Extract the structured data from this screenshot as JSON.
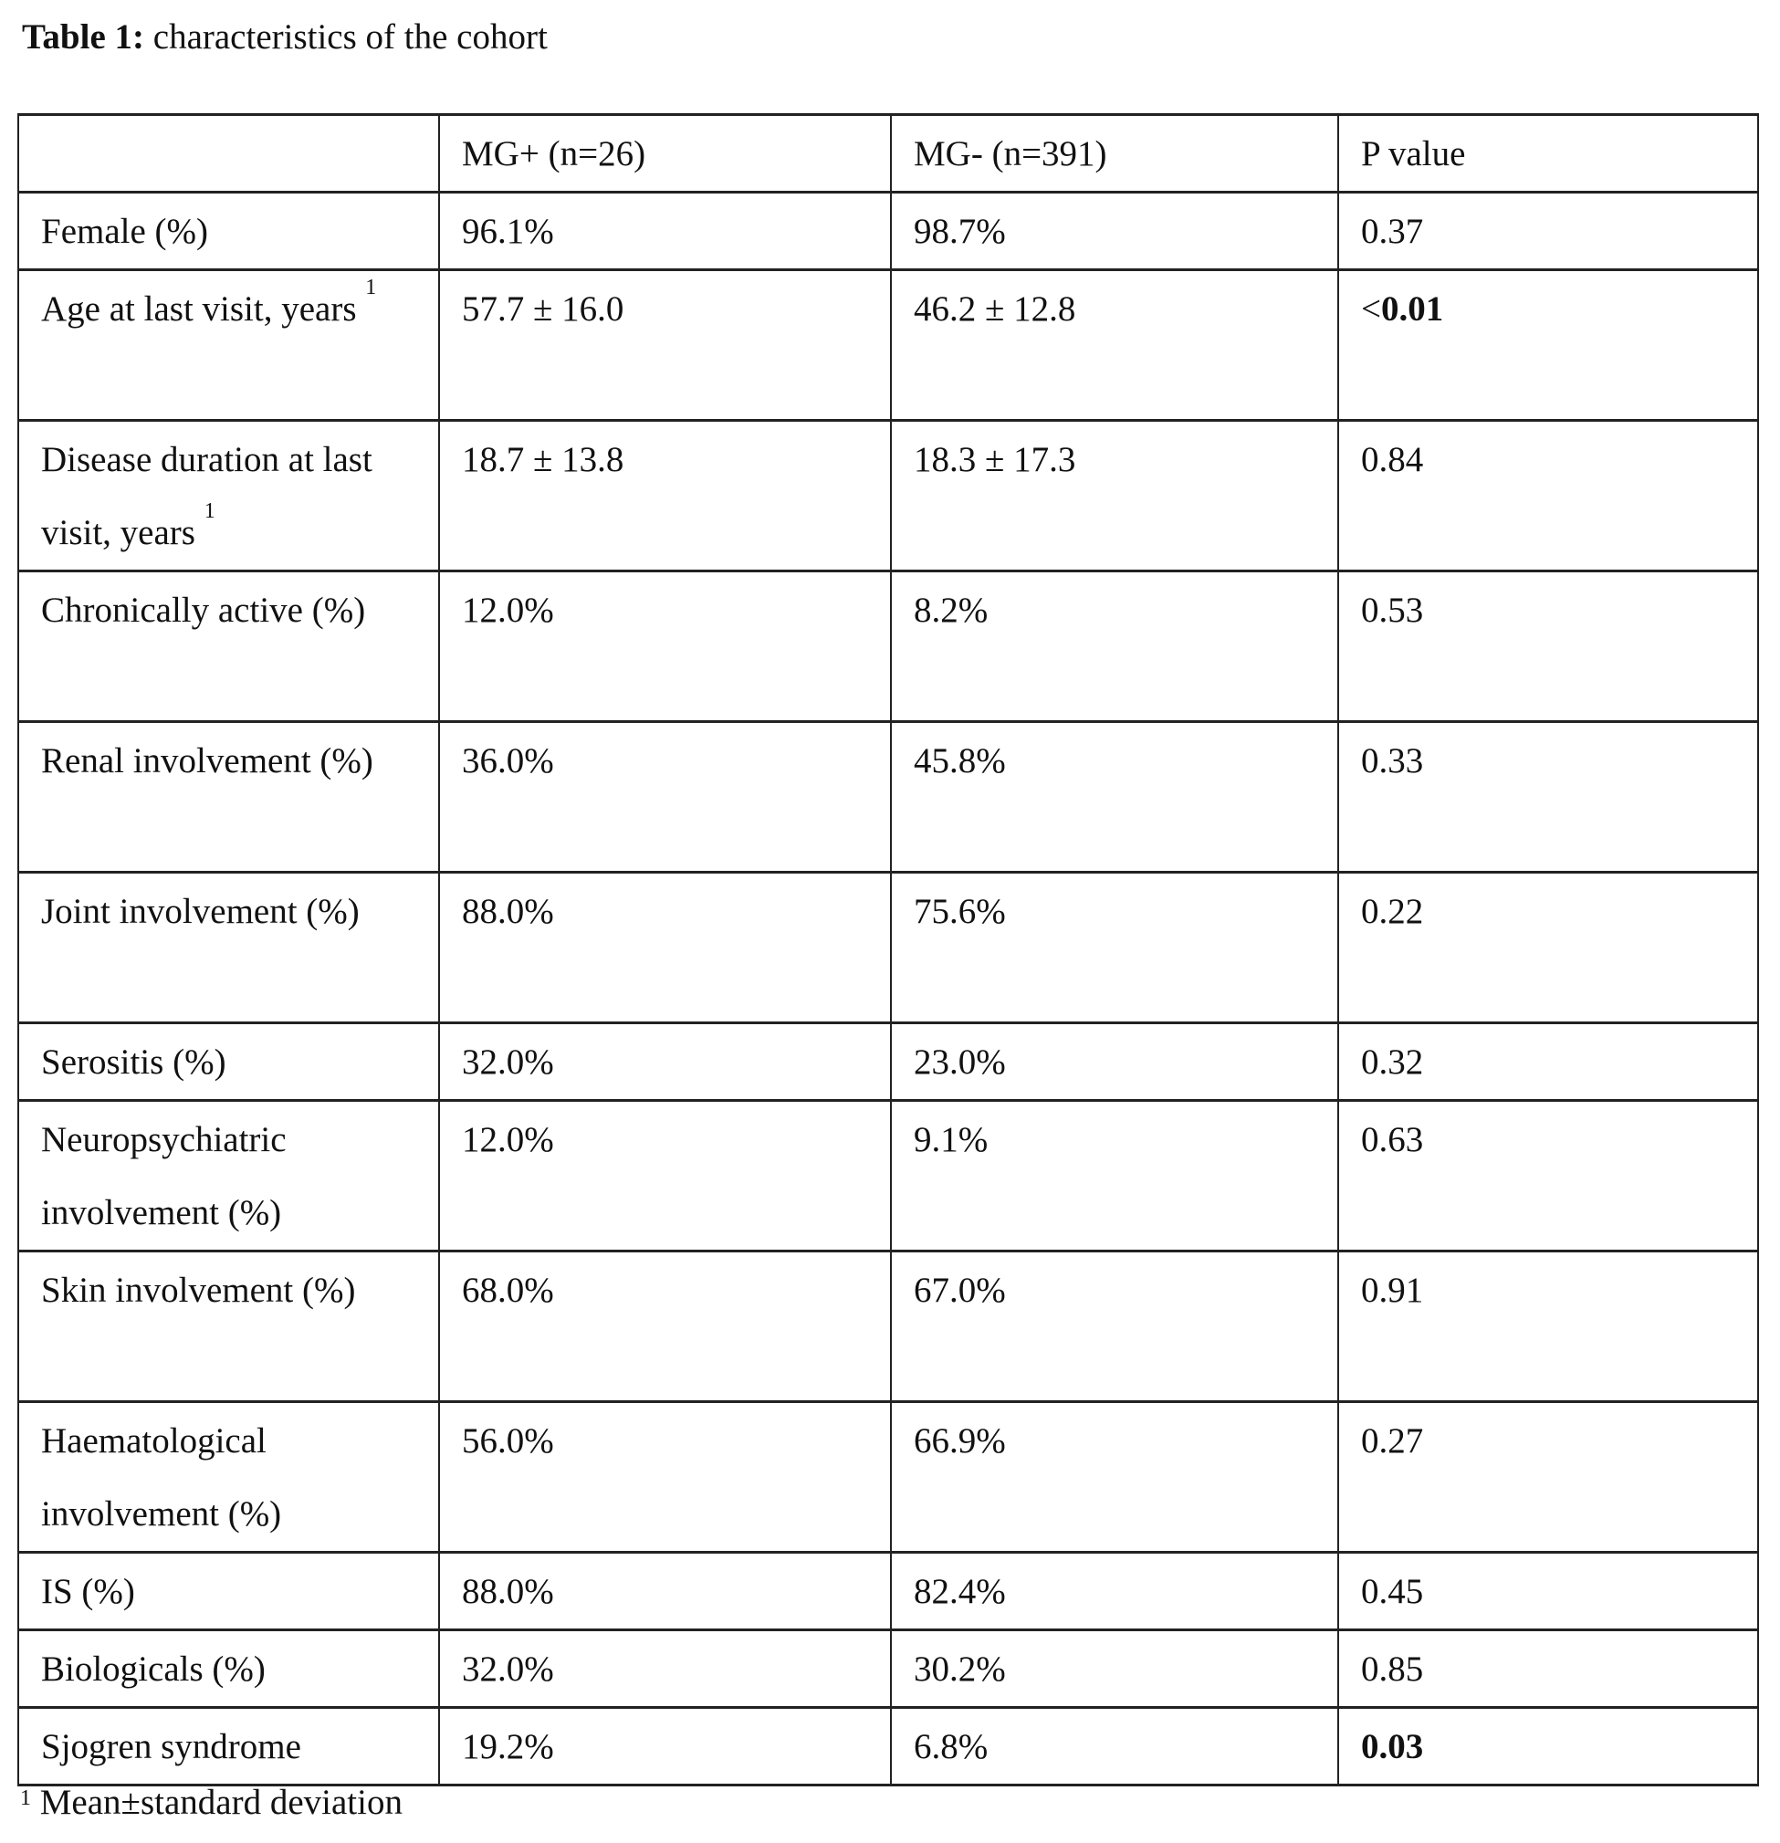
{
  "title": {
    "label": "Table 1:",
    "text": " characteristics of the cohort"
  },
  "table": {
    "headers": [
      "",
      "MG+ (n=26)",
      "MG- (n=391)",
      "P value"
    ],
    "rows": [
      {
        "label": "Female (%)",
        "sup": "",
        "mg_pos": "96.1%",
        "mg_neg": "98.7%",
        "p_prefix": "",
        "p": "0.37",
        "p_bold": false,
        "lines": 1
      },
      {
        "label": "Age at last visit, years",
        "sup": "1",
        "mg_pos": "57.7 ± 16.0",
        "mg_neg": "46.2 ± 12.8",
        "p_prefix": "<",
        "p": "0.01",
        "p_bold": true,
        "lines": 2
      },
      {
        "label": "Disease duration at last visit, years",
        "sup": "1",
        "mg_pos": "18.7 ± 13.8",
        "mg_neg": "18.3 ± 17.3",
        "p_prefix": "",
        "p": "0.84",
        "p_bold": false,
        "lines": 2
      },
      {
        "label": "Chronically active (%)",
        "sup": "",
        "mg_pos": "12.0%",
        "mg_neg": "8.2%",
        "p_prefix": "",
        "p": "0.53",
        "p_bold": false,
        "lines": 2
      },
      {
        "label": "Renal involvement (%)",
        "sup": "",
        "mg_pos": "36.0%",
        "mg_neg": "45.8%",
        "p_prefix": "",
        "p": "0.33",
        "p_bold": false,
        "lines": 2
      },
      {
        "label": "Joint involvement (%)",
        "sup": "",
        "mg_pos": "88.0%",
        "mg_neg": "75.6%",
        "p_prefix": "",
        "p": "0.22",
        "p_bold": false,
        "lines": 2
      },
      {
        "label": "Serositis (%)",
        "sup": "",
        "mg_pos": "32.0%",
        "mg_neg": "23.0%",
        "p_prefix": "",
        "p": "0.32",
        "p_bold": false,
        "lines": 1
      },
      {
        "label": "Neuropsychiatric involvement (%)",
        "sup": "",
        "mg_pos": "12.0%",
        "mg_neg": "9.1%",
        "p_prefix": "",
        "p": "0.63",
        "p_bold": false,
        "lines": 2
      },
      {
        "label": "Skin involvement (%)",
        "sup": "",
        "mg_pos": "68.0%",
        "mg_neg": "67.0%",
        "p_prefix": "",
        "p": "0.91",
        "p_bold": false,
        "lines": 2
      },
      {
        "label": "Haematological involvement (%)",
        "sup": "",
        "mg_pos": "56.0%",
        "mg_neg": "66.9%",
        "p_prefix": "",
        "p": "0.27",
        "p_bold": false,
        "lines": 2
      },
      {
        "label": "IS (%)",
        "sup": "",
        "mg_pos": "88.0%",
        "mg_neg": "82.4%",
        "p_prefix": "",
        "p": "0.45",
        "p_bold": false,
        "lines": 1
      },
      {
        "label": "Biologicals (%)",
        "sup": "",
        "mg_pos": "32.0%",
        "mg_neg": "30.2%",
        "p_prefix": "",
        "p": "0.85",
        "p_bold": false,
        "lines": 1
      },
      {
        "label": "Sjogren syndrome",
        "sup": "",
        "mg_pos": "19.2%",
        "mg_neg": "6.8%",
        "p_prefix": "",
        "p": "0.03",
        "p_bold": true,
        "lines": 1
      }
    ]
  },
  "footnote": {
    "sup": "1",
    "text": " Mean±standard deviation"
  }
}
